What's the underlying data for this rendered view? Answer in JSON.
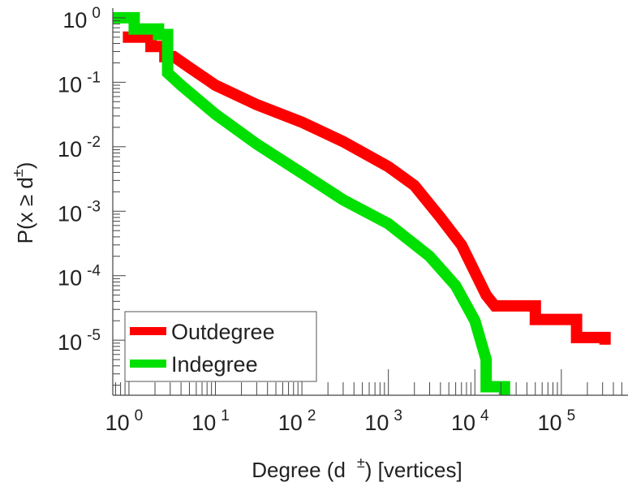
{
  "chart_data": {
    "type": "line",
    "title": "",
    "xlabel": "Degree (d ±) [vertices]",
    "xlabel_parts": {
      "pre": "Degree (d",
      "sup": "±",
      "post": ") [vertices]"
    },
    "ylabel_parts": {
      "pre": "P(x ≥ d",
      "sup": "±",
      "post": ")"
    },
    "xscale": "log",
    "yscale": "log",
    "xlim": [
      0.65,
      590000
    ],
    "ylim": [
      1.4e-06,
      1.12
    ],
    "grid": false,
    "legend_position": "bottom-left",
    "x_ticks": [
      {
        "base": "10",
        "exp": "0",
        "value": 1
      },
      {
        "base": "10",
        "exp": "1",
        "value": 10
      },
      {
        "base": "10",
        "exp": "2",
        "value": 100
      },
      {
        "base": "10",
        "exp": "3",
        "value": 1000
      },
      {
        "base": "10",
        "exp": "4",
        "value": 10000
      },
      {
        "base": "10",
        "exp": "5",
        "value": 100000
      }
    ],
    "y_ticks": [
      {
        "base": "10",
        "exp": "0",
        "value": 1
      },
      {
        "base": "10",
        "exp": "-1",
        "value": 0.1
      },
      {
        "base": "10",
        "exp": "-2",
        "value": 0.01
      },
      {
        "base": "10",
        "exp": "-3",
        "value": 0.001
      },
      {
        "base": "10",
        "exp": "-4",
        "value": 0.0001
      },
      {
        "base": "10",
        "exp": "-5",
        "value": 1e-05
      }
    ],
    "series": [
      {
        "name": "Outdegree",
        "color": "#ff0000",
        "points": [
          [
            0.85,
            0.5
          ],
          [
            1.8,
            0.5
          ],
          [
            1.8,
            0.36
          ],
          [
            2.6,
            0.36
          ],
          [
            2.6,
            0.25
          ],
          [
            3.3,
            0.25
          ],
          [
            5,
            0.17
          ],
          [
            10,
            0.09
          ],
          [
            30,
            0.045
          ],
          [
            100,
            0.024
          ],
          [
            300,
            0.012
          ],
          [
            1000,
            0.0049
          ],
          [
            2000,
            0.0025
          ],
          [
            4000,
            0.0008
          ],
          [
            7000,
            0.0003
          ],
          [
            13500,
            5e-05
          ],
          [
            17000,
            3.4e-05
          ],
          [
            50000,
            3.4e-05
          ],
          [
            50000,
            2.1e-05
          ],
          [
            150000,
            2.1e-05
          ],
          [
            150000,
            1.1e-05
          ],
          [
            320000,
            1.1e-05
          ],
          [
            320000,
            8.5e-06
          ]
        ]
      },
      {
        "name": "Indegree",
        "color": "#00e000",
        "points": [
          [
            0.6,
            1
          ],
          [
            1.15,
            1
          ],
          [
            1.15,
            0.67
          ],
          [
            2.2,
            0.67
          ],
          [
            2.2,
            0.55
          ],
          [
            2.8,
            0.55
          ],
          [
            2.8,
            0.14
          ],
          [
            4,
            0.09
          ],
          [
            10,
            0.032
          ],
          [
            30,
            0.011
          ],
          [
            100,
            0.0039
          ],
          [
            300,
            0.0015
          ],
          [
            1000,
            0.00064
          ],
          [
            3000,
            0.0002
          ],
          [
            6000,
            7e-05
          ],
          [
            10000,
            2e-05
          ],
          [
            13500,
            5e-06
          ],
          [
            13500,
            1.9e-06
          ],
          [
            22000,
            1.9e-06
          ],
          [
            22000,
            1e-06
          ]
        ]
      }
    ]
  }
}
